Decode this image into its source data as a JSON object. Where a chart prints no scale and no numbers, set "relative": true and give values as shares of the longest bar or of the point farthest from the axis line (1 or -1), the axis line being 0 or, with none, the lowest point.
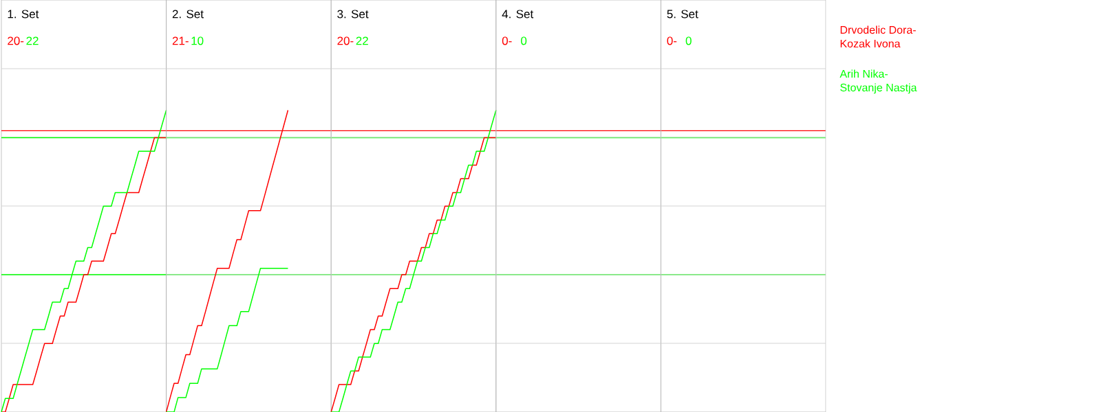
{
  "chart_data": [
    {
      "type": "line",
      "title": "1. Set",
      "annotations": [
        "20-",
        "22"
      ],
      "relative": true,
      "grid": "y",
      "marker": "none",
      "line_style": "solid",
      "categories": [
        null,
        null,
        null,
        null,
        null,
        null,
        null,
        null,
        null,
        null,
        null,
        null,
        null,
        null,
        null,
        null,
        null,
        null,
        null,
        null,
        null,
        null,
        null,
        null,
        null,
        null,
        null,
        null,
        null,
        null,
        null,
        null,
        null,
        null,
        null,
        null,
        null,
        null,
        null,
        null,
        null,
        null,
        null
      ],
      "ref_lines": [
        {
          "axis": "y",
          "value": 0.932,
          "color": "#ff0000"
        },
        {
          "axis": "y",
          "value": 0.909,
          "color": "#00ff00"
        },
        {
          "axis": "y",
          "value": 0.455,
          "color": "#00ff00"
        }
      ],
      "series": [
        {
          "name": "Drvodelic Dora-Kozak Ivona",
          "color": "#ff0000",
          "values": [
            0,
            0,
            0.045,
            0.091,
            0.091,
            0.091,
            0.091,
            0.091,
            0.091,
            0.136,
            0.182,
            0.227,
            0.227,
            0.227,
            0.273,
            0.318,
            0.318,
            0.364,
            0.364,
            0.364,
            0.409,
            0.455,
            0.455,
            0.5,
            0.5,
            0.5,
            0.5,
            0.545,
            0.591,
            0.591,
            0.636,
            0.682,
            0.727,
            0.727,
            0.727,
            0.727,
            0.773,
            0.818,
            0.864,
            0.909,
            0.909,
            0.909,
            0.909
          ]
        },
        {
          "name": "Arih Nika-Stovanje Nastja",
          "color": "#00ff00",
          "values": [
            0,
            0.045,
            0.045,
            0.045,
            0.091,
            0.136,
            0.182,
            0.227,
            0.273,
            0.273,
            0.273,
            0.273,
            0.318,
            0.364,
            0.364,
            0.364,
            0.409,
            0.409,
            0.455,
            0.5,
            0.5,
            0.5,
            0.545,
            0.545,
            0.591,
            0.636,
            0.682,
            0.682,
            0.682,
            0.727,
            0.727,
            0.727,
            0.727,
            0.773,
            0.818,
            0.864,
            0.864,
            0.864,
            0.864,
            0.864,
            0.909,
            0.955,
            1
          ]
        }
      ]
    },
    {
      "type": "line",
      "title": "2. Set",
      "annotations": [
        "21-",
        "10"
      ],
      "relative": true,
      "grid": "y",
      "marker": "none",
      "line_style": "solid",
      "categories": [
        null,
        null,
        null,
        null,
        null,
        null,
        null,
        null,
        null,
        null,
        null,
        null,
        null,
        null,
        null,
        null,
        null,
        null,
        null,
        null,
        null,
        null,
        null,
        null,
        null,
        null,
        null,
        null,
        null,
        null,
        null,
        null,
        null,
        null,
        null,
        null,
        null,
        null,
        null,
        null,
        null,
        null,
        null
      ],
      "series": [
        {
          "color": "#ff0000",
          "values": [
            0,
            0.048,
            0.095,
            0.095,
            0.143,
            0.19,
            0.19,
            0.238,
            0.286,
            0.286,
            0.333,
            0.381,
            0.429,
            0.476,
            0.476,
            0.476,
            0.476,
            0.524,
            0.571,
            0.571,
            0.619,
            0.667,
            0.667,
            0.667,
            0.667,
            0.714,
            0.762,
            0.81,
            0.857,
            0.905,
            0.952,
            1,
            null,
            null,
            null,
            null,
            null,
            null,
            null,
            null,
            null,
            null,
            null
          ]
        },
        {
          "color": "#00ff00",
          "values": [
            0,
            0,
            0,
            0.048,
            0.048,
            0.048,
            0.095,
            0.095,
            0.095,
            0.143,
            0.143,
            0.143,
            0.143,
            0.143,
            0.19,
            0.238,
            0.286,
            0.286,
            0.286,
            0.333,
            0.333,
            0.333,
            0.381,
            0.429,
            0.476,
            0.476,
            0.476,
            0.476,
            0.476,
            0.476,
            0.476,
            0.476,
            null,
            null,
            null,
            null,
            null,
            null,
            null,
            null,
            null,
            null,
            null
          ]
        }
      ]
    },
    {
      "type": "line",
      "title": "3. Set",
      "annotations": [
        "20-",
        "22"
      ],
      "relative": true,
      "grid": "y",
      "marker": "none",
      "line_style": "solid",
      "categories": [
        null,
        null,
        null,
        null,
        null,
        null,
        null,
        null,
        null,
        null,
        null,
        null,
        null,
        null,
        null,
        null,
        null,
        null,
        null,
        null,
        null,
        null,
        null,
        null,
        null,
        null,
        null,
        null,
        null,
        null,
        null,
        null,
        null,
        null,
        null,
        null,
        null,
        null,
        null,
        null,
        null,
        null,
        null
      ],
      "series": [
        {
          "color": "#ff0000",
          "values": [
            0,
            0.045,
            0.091,
            0.091,
            0.091,
            0.091,
            0.136,
            0.136,
            0.182,
            0.227,
            0.273,
            0.273,
            0.318,
            0.318,
            0.364,
            0.409,
            0.409,
            0.409,
            0.455,
            0.455,
            0.5,
            0.5,
            0.5,
            0.545,
            0.545,
            0.591,
            0.591,
            0.636,
            0.636,
            0.682,
            0.682,
            0.727,
            0.727,
            0.773,
            0.773,
            0.773,
            0.818,
            0.818,
            0.864,
            0.909,
            0.909,
            0.909,
            0.909
          ]
        },
        {
          "color": "#00ff00",
          "values": [
            0,
            0,
            0,
            0.045,
            0.091,
            0.136,
            0.136,
            0.182,
            0.182,
            0.182,
            0.182,
            0.227,
            0.227,
            0.273,
            0.273,
            0.273,
            0.318,
            0.364,
            0.364,
            0.409,
            0.409,
            0.455,
            0.5,
            0.5,
            0.545,
            0.545,
            0.591,
            0.591,
            0.636,
            0.636,
            0.682,
            0.682,
            0.727,
            0.727,
            0.773,
            0.818,
            0.818,
            0.864,
            0.864,
            0.864,
            0.909,
            0.955,
            1
          ]
        }
      ]
    },
    {
      "type": "other",
      "title": "4. Set",
      "annotations": [
        "0-",
        "0"
      ]
    },
    {
      "type": "other",
      "title": "5. Set",
      "annotations": [
        "0-",
        "0"
      ]
    }
  ]
}
